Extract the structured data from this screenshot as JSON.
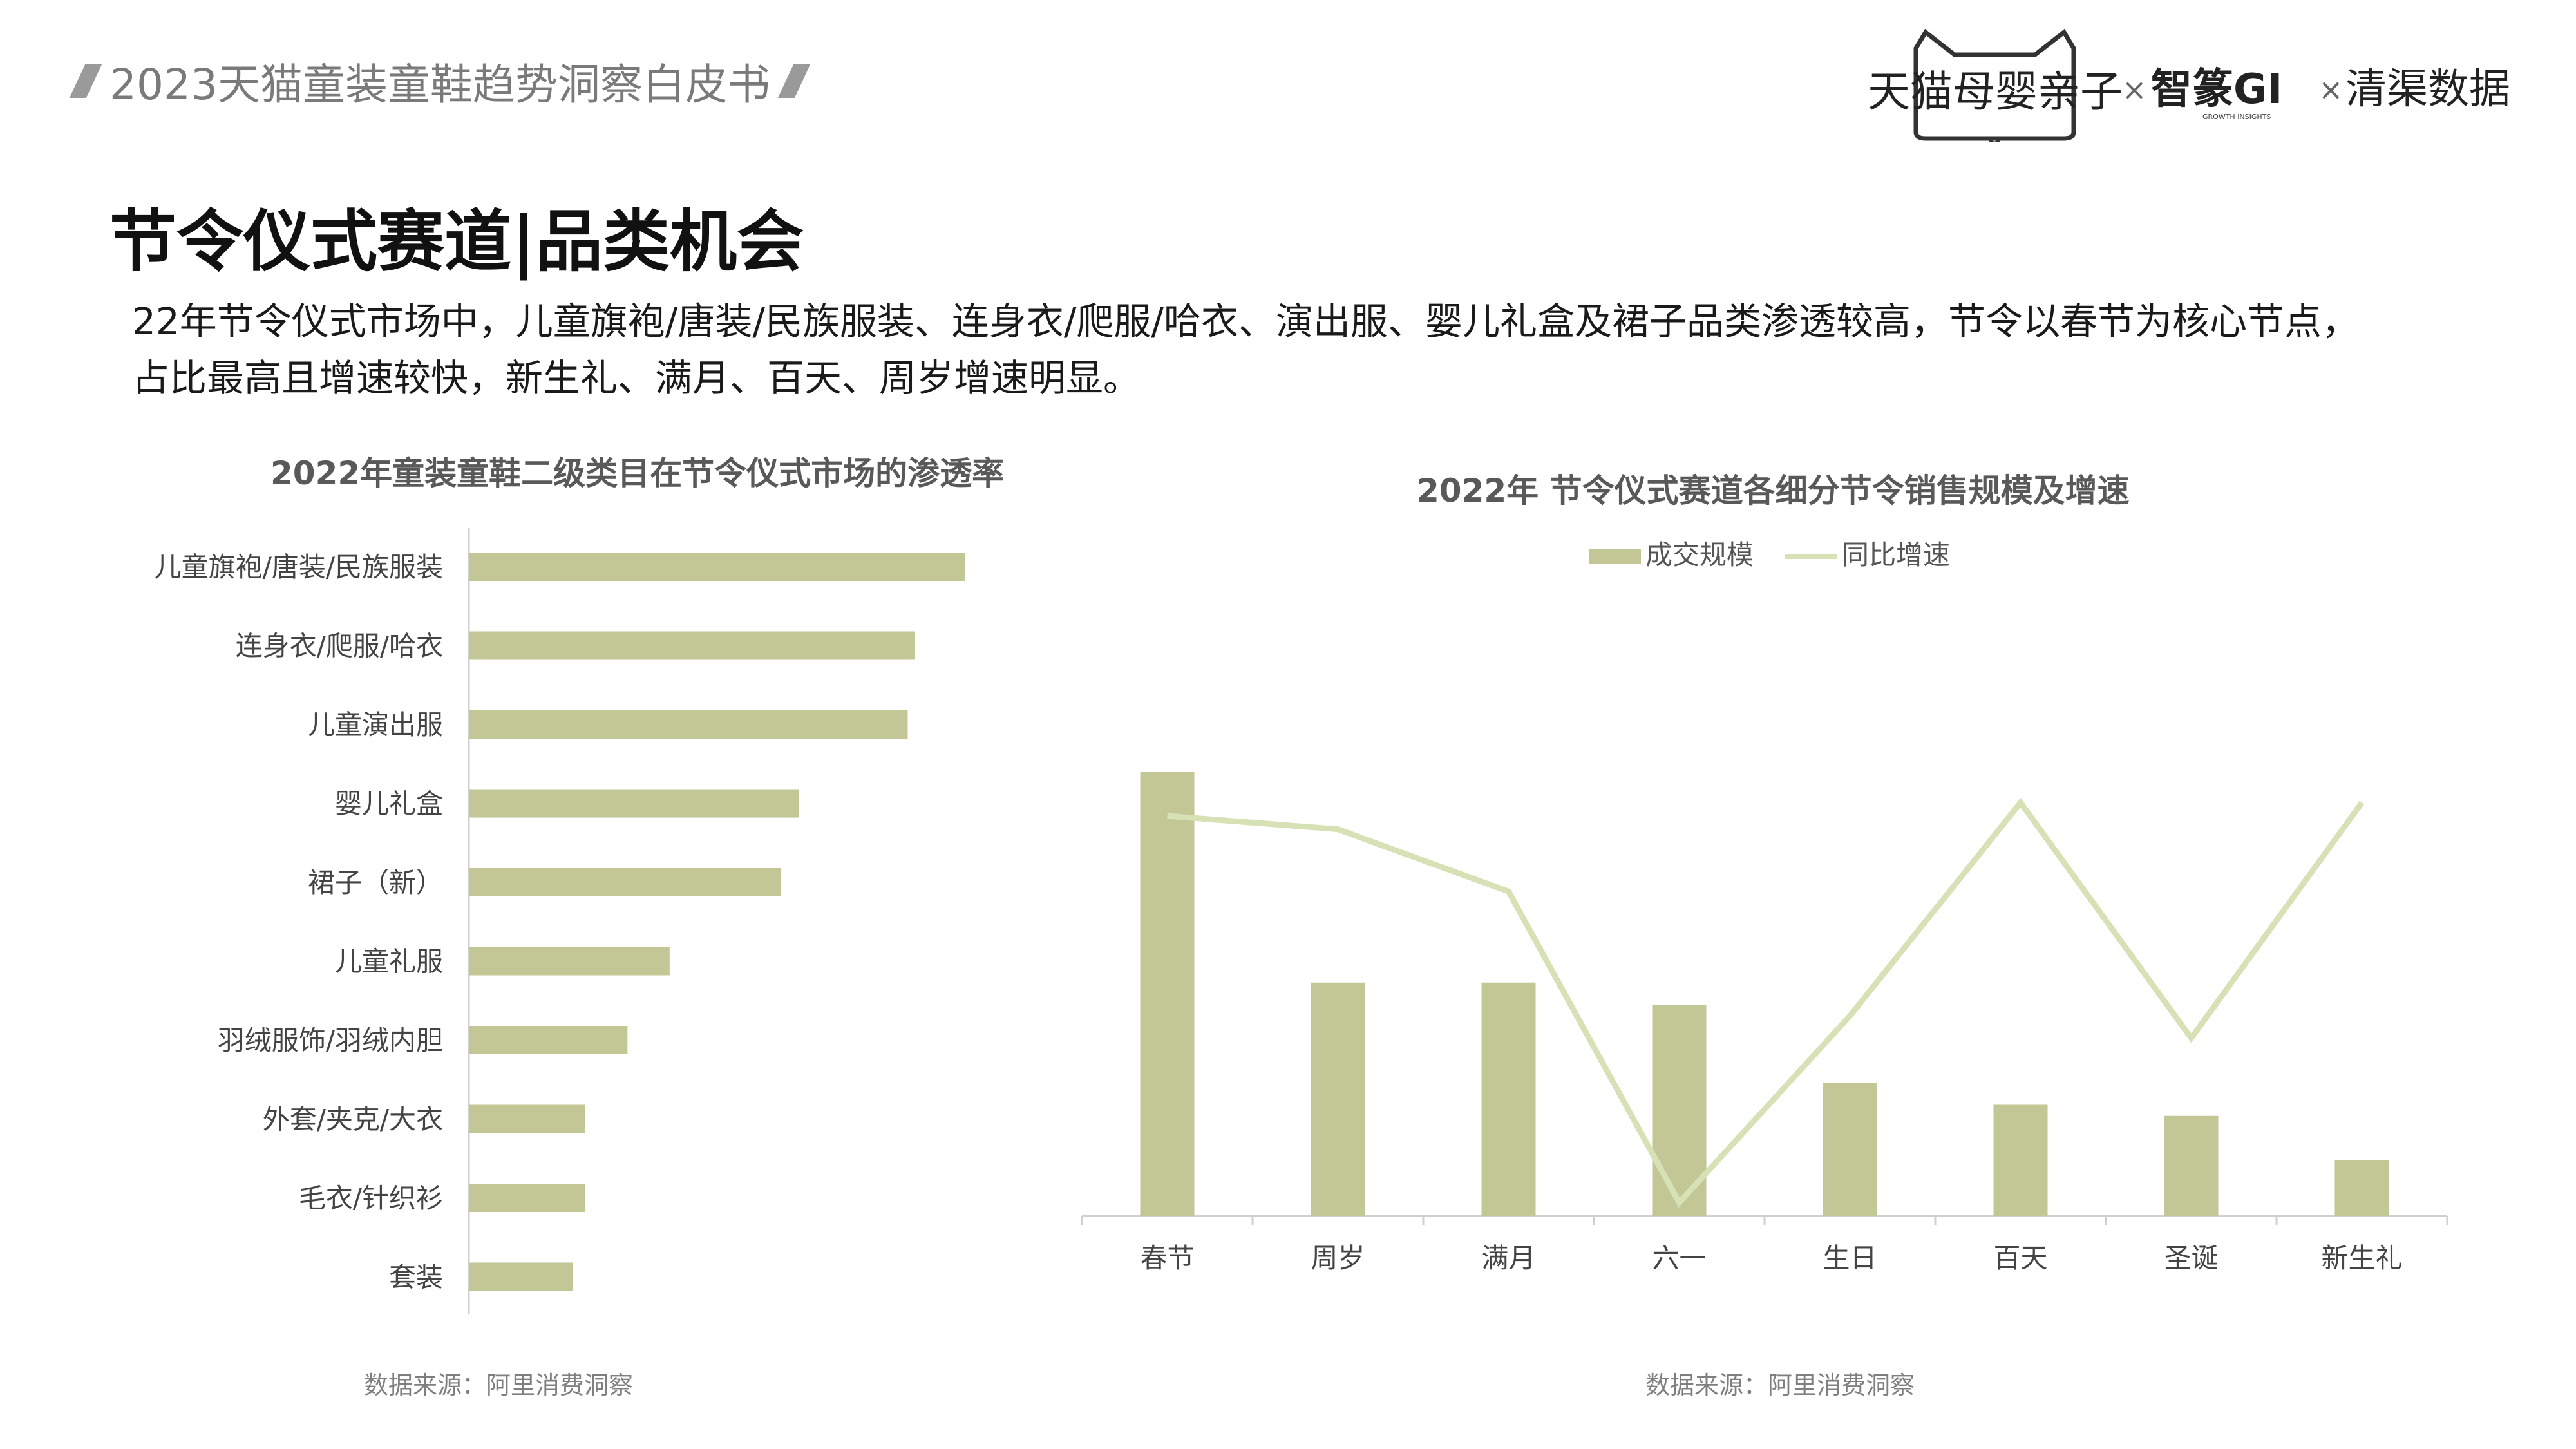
{
  "header": {
    "report_title": "2023天猫童装童鞋趋势洞察白皮书",
    "logo_text": "天猫母婴亲子",
    "partner_1": "智篆GI",
    "partner_1_sub": "GROWTH   INSIGHTS",
    "partner_2": "清渠数据",
    "times": "×"
  },
  "page_title": "节令仪式赛道|品类机会",
  "summary": {
    "line1": "22年节令仪式市场中，儿童旗袍/唐装/民族服装、连身衣/爬服/哈衣、演出服、婴儿礼盒及裙子品类渗透较高，节令以春节为核心节点，",
    "line2": "占比最高且增速较快，新生礼、满月、百天、周岁增速明显。"
  },
  "colors": {
    "bar": "#c2c795",
    "line": "#d6e2b5",
    "axis": "#d0d0d0"
  },
  "chart_data": [
    {
      "type": "bar",
      "orientation": "horizontal",
      "title": "2022年童装童鞋二级类目在节令仪式市场的渗透率",
      "categories": [
        "儿童旗袍/唐装/民族服装",
        "连身衣/爬服/哈衣",
        "儿童演出服",
        "婴儿礼盒",
        "裙子（新）",
        "儿童礼服",
        "羽绒服饰/羽绒内胆",
        "外套/夹克/大衣",
        "毛衣/针织衫",
        "套装"
      ],
      "values": [
        100,
        90,
        88.5,
        66.5,
        63,
        40.5,
        32,
        23.5,
        23.5,
        21
      ],
      "xlim": [
        0,
        100
      ],
      "source": "数据来源：阿里消费洞察"
    },
    {
      "type": "bar+line",
      "title": "2022年 节令仪式赛道各细分节令销售规模及增速",
      "categories": [
        "春节",
        "周岁",
        "满月",
        "六一",
        "生日",
        "百天",
        "圣诞",
        "新生礼"
      ],
      "series": [
        {
          "name": "成交规模",
          "type": "bar",
          "values": [
            100,
            52.5,
            52.5,
            47.5,
            30,
            25,
            22.5,
            12.5
          ]
        },
        {
          "name": "同比增速",
          "type": "line",
          "values": [
            90,
            87,
            73,
            3,
            45,
            93,
            40,
            93
          ]
        }
      ],
      "ylim": [
        0,
        100
      ],
      "source": "数据来源：阿里消费洞察"
    }
  ]
}
